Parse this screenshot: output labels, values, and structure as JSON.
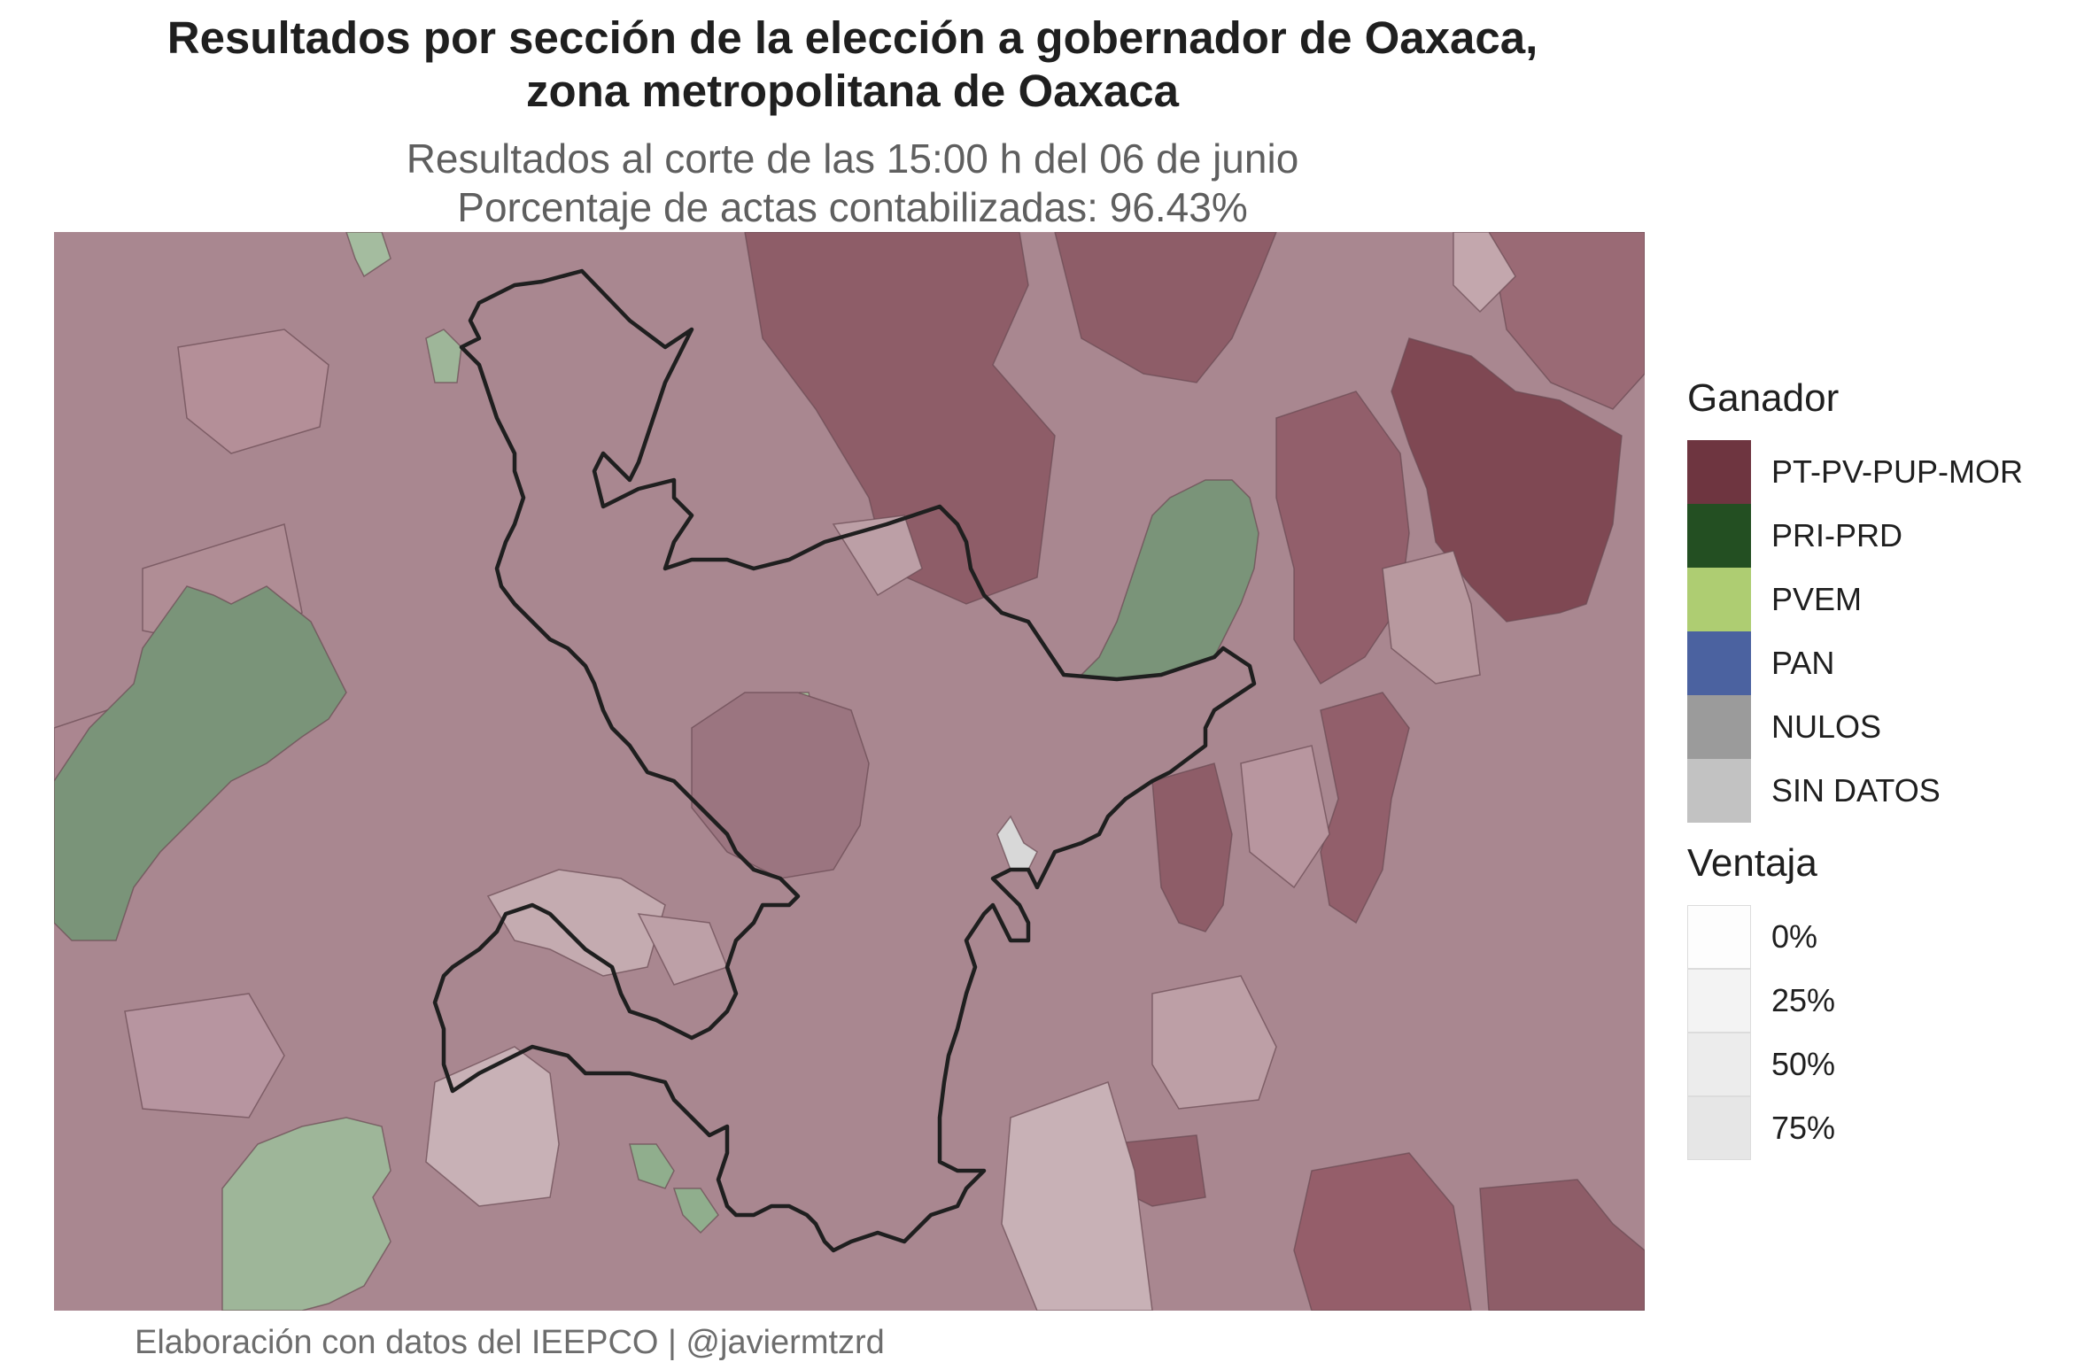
{
  "title_line1": "Resultados por sección de la elección a gobernador de Oaxaca,",
  "title_line2": "zona metropolitana de Oaxaca",
  "subtitle_line1": "Resultados al corte de las 15:00 h del 06 de junio",
  "subtitle_line2": "Porcentaje de actas contabilizadas: 96.43%",
  "caption": "Elaboración con datos del IEEPCO | @javiermtzrd",
  "legend": {
    "winner_title": "Ganador",
    "winner_items": [
      {
        "label": "PT-PV-PUP-MOR",
        "color": "#6e3540"
      },
      {
        "label": "PRI-PRD",
        "color": "#234f22"
      },
      {
        "label": "PVEM",
        "color": "#aecd72"
      },
      {
        "label": "PAN",
        "color": "#4b62a0"
      },
      {
        "label": "NULOS",
        "color": "#9b9b9b"
      },
      {
        "label": "SIN DATOS",
        "color": "#c2c2c2"
      }
    ],
    "margin_title": "Ventaja",
    "margin_items": [
      {
        "label": "0%",
        "color": "#fdfdfd"
      },
      {
        "label": "25%",
        "color": "#f3f3f3"
      },
      {
        "label": "50%",
        "color": "#ececec"
      },
      {
        "label": "75%",
        "color": "#e6e6e6"
      }
    ]
  }
}
